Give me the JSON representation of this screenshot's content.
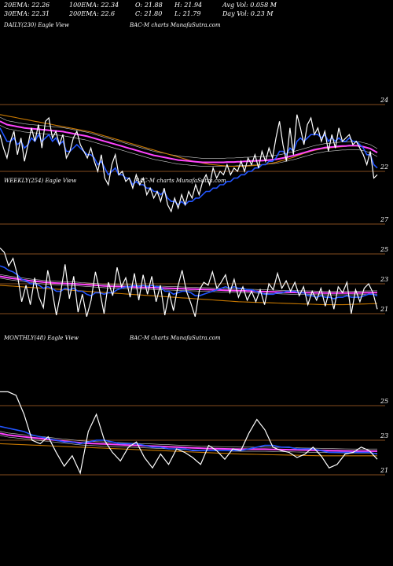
{
  "header": {
    "row1": [
      {
        "label": "20EMA:",
        "value": "22.26"
      },
      {
        "label": "100EMA:",
        "value": "22.34"
      },
      {
        "label": "O:",
        "value": "21.88"
      },
      {
        "label": "H:",
        "value": "21.94"
      },
      {
        "label": "Avg Vol:",
        "value": "0.058 M"
      }
    ],
    "row2": [
      {
        "label": "30EMA:",
        "value": "22.31"
      },
      {
        "label": "200EMA:",
        "value": "22.6"
      },
      {
        "label": "C:",
        "value": "21.80"
      },
      {
        "label": "L:",
        "value": "21.79"
      },
      {
        "label": "Day Vol:",
        "value": "0.23 M"
      }
    ]
  },
  "panels": {
    "daily": {
      "title": "DAILY(230) Eagle  View",
      "watermark": "BAC-M charts MunafaSutra.com"
    },
    "weekly": {
      "title": "WEEKLY(254) Eagle  View",
      "watermark": "BAC-M charts MunafaSutra.com"
    },
    "monthly": {
      "title": "MONTHLY(48) Eagle  View",
      "watermark": "BAC-M charts MunafaSutra.com"
    }
  },
  "colors": {
    "background": "#000000",
    "price": "#ffffff",
    "ema_fast": "#2255ff",
    "ema_mid": "#ff44ff",
    "ema_slow": "#c87800",
    "ema_band": "#cccccc",
    "gridline": "#b06428"
  },
  "chart_data": [
    {
      "type": "line",
      "name": "daily",
      "yticks": [
        24,
        22
      ],
      "ylim": [
        19.9,
        24.3
      ],
      "price": [
        23.1,
        22.7,
        22.4,
        22.9,
        23.2,
        22.5,
        23.0,
        22.3,
        22.8,
        23.3,
        22.9,
        23.4,
        22.7,
        23.5,
        23.6,
        23.0,
        23.2,
        22.8,
        23.1,
        22.4,
        22.6,
        23.0,
        23.2,
        22.8,
        22.6,
        22.4,
        22.7,
        22.3,
        22.0,
        22.5,
        21.8,
        21.6,
        22.2,
        22.5,
        21.9,
        22.0,
        21.7,
        21.8,
        21.5,
        21.9,
        21.6,
        21.8,
        21.3,
        21.5,
        21.2,
        21.4,
        21.1,
        21.5,
        21.0,
        20.8,
        21.2,
        20.9,
        21.3,
        21.0,
        21.4,
        21.2,
        21.6,
        21.3,
        21.7,
        21.9,
        21.6,
        22.1,
        21.8,
        22.0,
        21.9,
        22.2,
        21.9,
        22.1,
        22.0,
        22.3,
        22.0,
        22.4,
        22.2,
        22.5,
        22.1,
        22.6,
        22.3,
        22.7,
        22.4,
        23.0,
        23.5,
        22.8,
        22.3,
        23.3,
        22.5,
        23.7,
        23.3,
        22.8,
        23.4,
        23.6,
        23.1,
        23.3,
        22.9,
        23.2,
        22.6,
        23.1,
        22.7,
        23.3,
        22.9,
        23.0,
        23.1,
        22.8,
        22.9,
        22.7,
        22.5,
        22.2,
        22.6,
        21.8,
        21.9
      ],
      "ema_fast": [
        23.3,
        23.1,
        22.9,
        22.9,
        23.0,
        22.8,
        22.9,
        22.7,
        22.8,
        23.0,
        22.9,
        23.1,
        22.9,
        23.0,
        23.1,
        22.9,
        23.0,
        22.8,
        22.9,
        22.6,
        22.6,
        22.7,
        22.8,
        22.7,
        22.6,
        22.5,
        22.5,
        22.4,
        22.2,
        22.3,
        22.1,
        21.9,
        22.0,
        22.1,
        21.9,
        21.9,
        21.8,
        21.8,
        21.6,
        21.7,
        21.6,
        21.6,
        21.5,
        21.5,
        21.4,
        21.4,
        21.3,
        21.4,
        21.2,
        21.1,
        21.1,
        21.0,
        21.1,
        21.0,
        21.1,
        21.1,
        21.2,
        21.2,
        21.3,
        21.4,
        21.4,
        21.5,
        21.5,
        21.6,
        21.6,
        21.7,
        21.7,
        21.8,
        21.8,
        21.9,
        21.9,
        22.0,
        22.0,
        22.1,
        22.1,
        22.2,
        22.2,
        22.3,
        22.3,
        22.4,
        22.6,
        22.6,
        22.5,
        22.7,
        22.6,
        22.9,
        23.0,
        22.9,
        23.0,
        23.1,
        23.1,
        23.1,
        23.0,
        23.1,
        22.9,
        23.0,
        22.9,
        23.0,
        22.9,
        22.9,
        23.0,
        22.9,
        22.9,
        22.8,
        22.7,
        22.5,
        22.5,
        22.2,
        22.1
      ],
      "ema_mid": [
        23.5,
        23.45,
        23.4,
        23.38,
        23.36,
        23.34,
        23.32,
        23.3,
        23.29,
        23.28,
        23.27,
        23.26,
        23.25,
        23.24,
        23.23,
        23.22,
        23.21,
        23.2,
        23.19,
        23.17,
        23.15,
        23.13,
        23.11,
        23.09,
        23.07,
        23.05,
        23.02,
        22.99,
        22.96,
        22.93,
        22.9,
        22.87,
        22.84,
        22.81,
        22.78,
        22.75,
        22.72,
        22.69,
        22.66,
        22.63,
        22.6,
        22.57,
        22.54,
        22.51,
        22.48,
        22.46,
        22.44,
        22.42,
        22.4,
        22.38,
        22.36,
        22.34,
        22.33,
        22.32,
        22.31,
        22.3,
        22.29,
        22.28,
        22.27,
        22.27,
        22.27,
        22.27,
        22.27,
        22.27,
        22.27,
        22.28,
        22.28,
        22.28,
        22.29,
        22.29,
        22.3,
        22.3,
        22.31,
        22.31,
        22.32,
        22.32,
        22.33,
        22.34,
        22.35,
        22.36,
        22.38,
        22.4,
        22.42,
        22.45,
        22.47,
        22.5,
        22.53,
        22.56,
        22.59,
        22.62,
        22.65,
        22.67,
        22.69,
        22.71,
        22.72,
        22.73,
        22.74,
        22.75,
        22.76,
        22.76,
        22.77,
        22.77,
        22.77,
        22.76,
        22.74,
        22.71,
        22.68,
        22.62,
        22.56
      ],
      "ema_slow": [
        23.7,
        23.68,
        23.66,
        23.64,
        23.62,
        23.6,
        23.58,
        23.56,
        23.54,
        23.52,
        23.5,
        23.48,
        23.46,
        23.44,
        23.42,
        23.4,
        23.38,
        23.36,
        23.34,
        23.32,
        23.3,
        23.28,
        23.26,
        23.24,
        23.22,
        23.2,
        23.18,
        23.15,
        23.12,
        23.09,
        23.06,
        23.03,
        23.0,
        22.97,
        22.94,
        22.91,
        22.88,
        22.85,
        22.82,
        22.79,
        22.76,
        22.73,
        22.7,
        22.67,
        22.64,
        22.61,
        22.58,
        22.55,
        22.52,
        22.49,
        22.46,
        22.43,
        22.4,
        22.37,
        22.34,
        22.31,
        22.29,
        22.27,
        22.25,
        22.23,
        22.21,
        22.2,
        22.19,
        22.18,
        22.17,
        22.16,
        22.15,
        22.15,
        22.15,
        22.15,
        22.15,
        22.16,
        22.17,
        22.18,
        22.19,
        22.2,
        22.21,
        22.23,
        22.25,
        22.27,
        22.3,
        22.33,
        22.36,
        22.39,
        22.42,
        22.46,
        22.5,
        22.54,
        22.57,
        22.6,
        22.63,
        22.65,
        22.67,
        22.69,
        22.7,
        22.71,
        22.72,
        22.73,
        22.74,
        22.75,
        22.76,
        22.76,
        22.76,
        22.75,
        22.73,
        22.7,
        22.67,
        22.62,
        22.58
      ]
    },
    {
      "type": "line",
      "name": "weekly",
      "yticks": [
        27,
        25,
        23,
        21
      ],
      "ylim": [
        20.4,
        27.6
      ],
      "price": [
        25.4,
        25.1,
        24.2,
        24.7,
        23.6,
        21.8,
        22.9,
        21.6,
        23.4,
        22.1,
        21.4,
        23.9,
        22.6,
        20.9,
        22.4,
        24.3,
        22.0,
        23.5,
        21.1,
        22.3,
        20.8,
        21.9,
        23.8,
        22.5,
        21.0,
        23.1,
        22.2,
        24.1,
        22.8,
        23.4,
        22.1,
        23.7,
        21.9,
        23.6,
        22.3,
        23.5,
        21.8,
        22.9,
        20.9,
        22.4,
        21.2,
        22.8,
        23.9,
        22.5,
        21.7,
        20.8,
        22.6,
        23.1,
        22.9,
        23.8,
        22.7,
        23.1,
        23.6,
        22.4,
        23.3,
        22.1,
        22.8,
        21.9,
        22.5,
        21.8,
        22.6,
        21.6,
        23.0,
        22.6,
        23.7,
        22.7,
        23.2,
        22.5,
        23.1,
        22.2,
        22.8,
        21.6,
        22.5,
        21.9,
        22.7,
        21.5,
        22.6,
        21.3,
        22.8,
        22.4,
        23.1,
        21.0,
        22.6,
        21.8,
        22.7,
        23.0,
        22.4,
        21.3
      ],
      "ema_fast": [
        24.2,
        24.1,
        23.9,
        23.8,
        23.6,
        23.3,
        23.2,
        23.0,
        23.0,
        22.9,
        22.7,
        22.8,
        22.7,
        22.5,
        22.5,
        22.7,
        22.6,
        22.7,
        22.5,
        22.5,
        22.3,
        22.2,
        22.4,
        22.4,
        22.3,
        22.4,
        22.4,
        22.6,
        22.7,
        22.8,
        22.8,
        22.9,
        22.8,
        22.9,
        22.8,
        22.9,
        22.8,
        22.8,
        22.5,
        22.5,
        22.3,
        22.4,
        22.5,
        22.5,
        22.4,
        22.2,
        22.2,
        22.3,
        22.4,
        22.5,
        22.6,
        22.7,
        22.8,
        22.7,
        22.8,
        22.7,
        22.7,
        22.6,
        22.6,
        22.5,
        22.4,
        22.3,
        22.3,
        22.3,
        22.4,
        22.4,
        22.5,
        22.5,
        22.5,
        22.4,
        22.4,
        22.2,
        22.2,
        22.1,
        22.2,
        22.1,
        22.1,
        22.0,
        22.1,
        22.1,
        22.2,
        22.1,
        22.1,
        22.1,
        22.2,
        22.3,
        22.3,
        22.2
      ],
      "ema_mid": [
        23.5,
        23.45,
        23.4,
        23.36,
        23.32,
        23.28,
        23.24,
        23.2,
        23.17,
        23.14,
        23.11,
        23.09,
        23.07,
        23.05,
        23.03,
        23.02,
        23.01,
        23.0,
        22.98,
        22.96,
        22.94,
        22.92,
        22.9,
        22.88,
        22.86,
        22.84,
        22.83,
        22.82,
        22.81,
        22.8,
        22.79,
        22.78,
        22.77,
        22.76,
        22.75,
        22.74,
        22.73,
        22.72,
        22.71,
        22.7,
        22.69,
        22.68,
        22.67,
        22.66,
        22.65,
        22.64,
        22.63,
        22.62,
        22.61,
        22.6,
        22.59,
        22.58,
        22.57,
        22.56,
        22.55,
        22.54,
        22.53,
        22.52,
        22.51,
        22.5,
        22.49,
        22.48,
        22.47,
        22.46,
        22.45,
        22.44,
        22.43,
        22.42,
        22.42,
        22.41,
        22.41,
        22.4,
        22.4,
        22.39,
        22.39,
        22.38,
        22.38,
        22.38,
        22.38,
        22.38,
        22.38,
        22.38,
        22.39,
        22.39,
        22.4,
        22.4,
        22.41,
        22.41
      ],
      "ema_slow": [
        22.9,
        22.88,
        22.86,
        22.84,
        22.82,
        22.8,
        22.78,
        22.76,
        22.74,
        22.72,
        22.7,
        22.68,
        22.66,
        22.64,
        22.62,
        22.6,
        22.58,
        22.56,
        22.54,
        22.52,
        22.5,
        22.48,
        22.46,
        22.44,
        22.42,
        22.4,
        22.38,
        22.36,
        22.34,
        22.32,
        22.3,
        22.28,
        22.26,
        22.24,
        22.22,
        22.2,
        22.18,
        22.16,
        22.14,
        22.12,
        22.1,
        22.08,
        22.06,
        22.04,
        22.02,
        22.0,
        21.98,
        21.96,
        21.94,
        21.92,
        21.9,
        21.88,
        21.86,
        21.84,
        21.82,
        21.8,
        21.79,
        21.78,
        21.77,
        21.76,
        21.75,
        21.74,
        21.73,
        21.72,
        21.71,
        21.7,
        21.69,
        21.68,
        21.67,
        21.66,
        21.65,
        21.64,
        21.63,
        21.62,
        21.61,
        21.6,
        21.6,
        21.6,
        21.6,
        21.6,
        21.61,
        21.62,
        21.63,
        21.64,
        21.65,
        21.66,
        21.67,
        21.68
      ]
    },
    {
      "type": "line",
      "name": "monthly",
      "yticks": [
        25,
        23,
        21
      ],
      "ylim": [
        20.3,
        26.3
      ],
      "price": [
        25.8,
        25.8,
        25.6,
        24.5,
        23.0,
        22.8,
        23.2,
        22.3,
        21.5,
        22.1,
        21.1,
        23.5,
        24.5,
        23.0,
        22.3,
        21.8,
        22.6,
        22.9,
        22.0,
        21.4,
        22.2,
        21.6,
        22.5,
        22.3,
        22.0,
        21.6,
        22.7,
        22.4,
        21.9,
        22.5,
        22.4,
        23.4,
        24.2,
        23.6,
        22.6,
        22.4,
        22.3,
        22.0,
        22.2,
        22.6,
        22.1,
        21.4,
        21.6,
        22.2,
        22.3,
        22.6,
        22.4,
        21.9
      ],
      "ema_fast": [
        23.8,
        23.7,
        23.6,
        23.5,
        23.3,
        23.2,
        23.1,
        23.0,
        22.9,
        22.9,
        22.8,
        22.9,
        23.0,
        23.0,
        22.9,
        22.8,
        22.8,
        22.8,
        22.7,
        22.6,
        22.6,
        22.5,
        22.5,
        22.5,
        22.4,
        22.4,
        22.4,
        22.4,
        22.4,
        22.4,
        22.4,
        22.5,
        22.6,
        22.7,
        22.7,
        22.6,
        22.6,
        22.5,
        22.5,
        22.5,
        22.4,
        22.3,
        22.3,
        22.3,
        22.3,
        22.3,
        22.3,
        22.2
      ],
      "ema_mid": [
        23.4,
        23.3,
        23.25,
        23.2,
        23.15,
        23.1,
        23.05,
        23.0,
        22.95,
        22.9,
        22.85,
        22.82,
        22.8,
        22.78,
        22.76,
        22.74,
        22.72,
        22.7,
        22.68,
        22.66,
        22.64,
        22.62,
        22.6,
        22.58,
        22.56,
        22.54,
        22.52,
        22.51,
        22.5,
        22.49,
        22.48,
        22.48,
        22.48,
        22.48,
        22.47,
        22.46,
        22.45,
        22.44,
        22.43,
        22.42,
        22.41,
        22.4,
        22.39,
        22.38,
        22.37,
        22.37,
        22.37,
        22.37
      ],
      "ema_slow": [
        22.8,
        22.78,
        22.76,
        22.74,
        22.72,
        22.7,
        22.68,
        22.66,
        22.64,
        22.62,
        22.6,
        22.58,
        22.56,
        22.54,
        22.52,
        22.5,
        22.48,
        22.46,
        22.44,
        22.42,
        22.4,
        22.38,
        22.36,
        22.34,
        22.32,
        22.3,
        22.28,
        22.26,
        22.24,
        22.22,
        22.2,
        22.19,
        22.18,
        22.17,
        22.16,
        22.15,
        22.14,
        22.13,
        22.12,
        22.11,
        22.1,
        22.1,
        22.1,
        22.1,
        22.1,
        22.1,
        22.1,
        22.1
      ]
    }
  ]
}
